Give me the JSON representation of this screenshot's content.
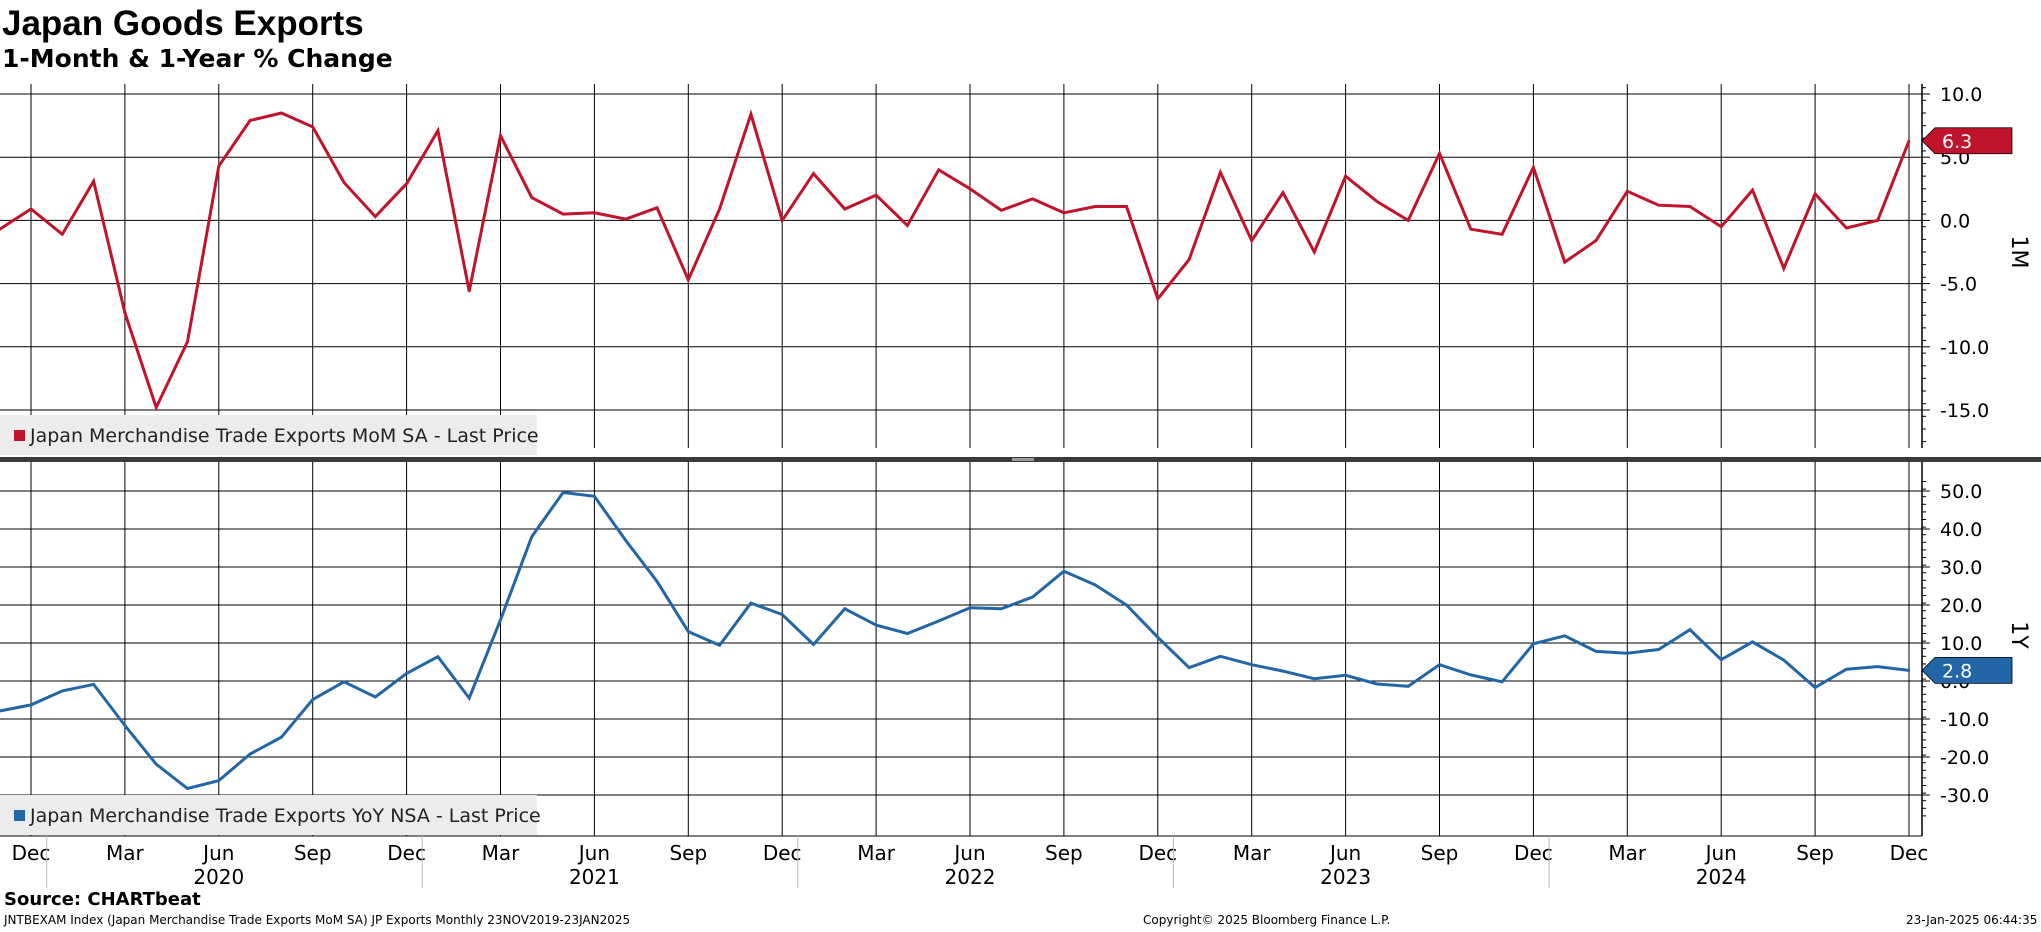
{
  "header": {
    "title": "Japan Goods Exports",
    "subtitle": "1-Month & 1-Year % Change"
  },
  "footer": {
    "source": "Source: CHARTbeat",
    "index_info": "JNTBEXAM Index (Japan Merchandise Trade Exports MoM SA) JP Exports  Monthly 23NOV2019-23JAN2025",
    "copyright": "Copyright© 2025 Bloomberg Finance L.P.",
    "timestamp": "23-Jan-2025 06:44:35"
  },
  "colors": {
    "mom": "#c0142c",
    "yoy": "#2266a8"
  },
  "chart_data": [
    {
      "type": "line",
      "panel_label": "1M",
      "x_start": "2019-11",
      "x_end": "2024-12",
      "ylim": [
        -18.5,
        10.8
      ],
      "yticks": [
        10.0,
        5.0,
        0.0,
        -5.0,
        -10.0,
        -15.0
      ],
      "ytick_labels": [
        "10.0",
        "5.0",
        "0.0",
        "-5.0",
        "-10.0",
        "-15.0"
      ],
      "grid": true,
      "legend": "bottom-left",
      "series": [
        {
          "name": "Japan Merchandise Trade Exports MoM SA - Last Price",
          "color": "#c0142c",
          "last_value_label": "6.3",
          "values": [
            -0.7,
            0.9,
            -1.1,
            3.1,
            -7.3,
            -14.8,
            -9.6,
            4.3,
            7.9,
            8.5,
            7.4,
            3.0,
            0.3,
            2.9,
            7.1,
            -5.6,
            6.7,
            1.8,
            0.5,
            0.6,
            0.1,
            1.0,
            -4.7,
            0.9,
            8.4,
            0.0,
            3.7,
            0.9,
            2.0,
            -0.4,
            4.0,
            2.5,
            0.8,
            1.7,
            0.6,
            1.1,
            1.1,
            -6.2,
            -3.1,
            3.8,
            -1.6,
            2.2,
            -2.5,
            3.5,
            1.5,
            0.0,
            5.3,
            -0.7,
            -1.1,
            4.2,
            -3.3,
            -1.6,
            2.3,
            1.2,
            1.1,
            -0.5,
            2.4,
            -3.8,
            2.1,
            -0.6,
            0.0,
            6.3
          ]
        }
      ]
    },
    {
      "type": "line",
      "panel_label": "1Y",
      "x_start": "2019-11",
      "x_end": "2024-12",
      "ylim": [
        -35.5,
        53.0
      ],
      "yticks": [
        50.0,
        40.0,
        30.0,
        20.0,
        10.0,
        0.0,
        -10.0,
        -20.0,
        -30.0
      ],
      "ytick_labels": [
        "50.0",
        "40.0",
        "30.0",
        "20.0",
        "10.0",
        "0.0",
        "-10.0",
        "-20.0",
        "-30.0"
      ],
      "grid": true,
      "legend": "bottom-left",
      "series": [
        {
          "name": "Japan Merchandise Trade Exports YoY NSA - Last Price",
          "color": "#2266a8",
          "last_value_label": "2.8",
          "values": [
            -7.9,
            -6.3,
            -2.6,
            -0.9,
            -11.7,
            -21.9,
            -28.3,
            -26.2,
            -19.2,
            -14.8,
            -4.9,
            -0.2,
            -4.2,
            2.0,
            6.4,
            -4.5,
            16.1,
            38.0,
            49.6,
            48.6,
            37.0,
            26.2,
            13.0,
            9.4,
            20.5,
            17.5,
            9.6,
            19.0,
            14.7,
            12.5,
            15.8,
            19.3,
            19.0,
            22.1,
            28.9,
            25.3,
            20.0,
            11.5,
            3.5,
            6.5,
            4.3,
            2.6,
            0.6,
            1.5,
            -0.8,
            -1.4,
            4.3,
            1.6,
            -0.2,
            9.8,
            11.9,
            7.8,
            7.3,
            8.3,
            13.5,
            5.6,
            10.3,
            5.5,
            -1.7,
            3.1,
            3.8,
            2.8
          ]
        }
      ]
    }
  ],
  "x_axis": {
    "month_ticks": [
      {
        "date": "2019-12",
        "label": "Dec"
      },
      {
        "date": "2020-03",
        "label": "Mar"
      },
      {
        "date": "2020-06",
        "label": "Jun"
      },
      {
        "date": "2020-09",
        "label": "Sep"
      },
      {
        "date": "2020-12",
        "label": "Dec"
      },
      {
        "date": "2021-03",
        "label": "Mar"
      },
      {
        "date": "2021-06",
        "label": "Jun"
      },
      {
        "date": "2021-09",
        "label": "Sep"
      },
      {
        "date": "2021-12",
        "label": "Dec"
      },
      {
        "date": "2022-03",
        "label": "Mar"
      },
      {
        "date": "2022-06",
        "label": "Jun"
      },
      {
        "date": "2022-09",
        "label": "Sep"
      },
      {
        "date": "2022-12",
        "label": "Dec"
      },
      {
        "date": "2023-03",
        "label": "Mar"
      },
      {
        "date": "2023-06",
        "label": "Jun"
      },
      {
        "date": "2023-09",
        "label": "Sep"
      },
      {
        "date": "2023-12",
        "label": "Dec"
      },
      {
        "date": "2024-03",
        "label": "Mar"
      },
      {
        "date": "2024-06",
        "label": "Jun"
      },
      {
        "date": "2024-09",
        "label": "Sep"
      },
      {
        "date": "2024-12",
        "label": "Dec"
      }
    ],
    "year_labels": [
      {
        "date": "2020-06",
        "label": "2020"
      },
      {
        "date": "2021-06",
        "label": "2021"
      },
      {
        "date": "2022-06",
        "label": "2022"
      },
      {
        "date": "2023-06",
        "label": "2023"
      },
      {
        "date": "2024-06",
        "label": "2024"
      }
    ],
    "year_separators": [
      "2020-01",
      "2021-01",
      "2022-01",
      "2023-01",
      "2024-01"
    ]
  }
}
